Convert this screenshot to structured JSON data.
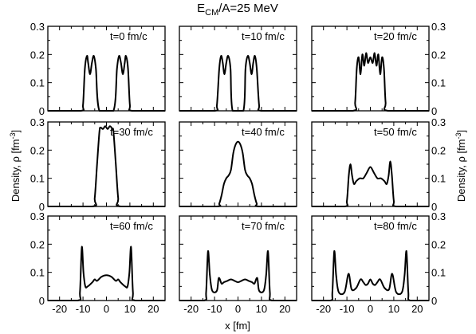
{
  "figure": {
    "title_main": "E",
    "title_sub": "CM",
    "title_rest": "/A=25 MeV",
    "xlabel": "x [fm]",
    "ylabel_left": "Density, ρ [fm",
    "ylabel_right": "Density, ρ [fm",
    "ylabel_exp": "-3",
    "ylabel_close": "]"
  },
  "chart_data": {
    "type": "line",
    "layout": "3x3 grid of small multiples, shared axes",
    "xlim": [
      -25,
      25
    ],
    "ylim": [
      0,
      0.3
    ],
    "x_ticks": [
      -20,
      -10,
      0,
      10,
      20
    ],
    "x_tick_labels": [
      "-20",
      "-10",
      "0",
      "10",
      "20"
    ],
    "y_ticks": [
      0,
      0.1,
      0.2,
      0.3
    ],
    "y_tick_labels": [
      "0",
      "0.1",
      "0.2",
      "0.3"
    ],
    "grid": false,
    "line_color": "#000000",
    "panels": [
      {
        "label": "t=0 fm/c",
        "x": [
          -25,
          -11,
          -10,
          -9.2,
          -8.3,
          -7.8,
          -7,
          -6.2,
          -5.4,
          -4.5,
          -3,
          3,
          4.5,
          5.4,
          6.2,
          7,
          7.8,
          8.3,
          9.2,
          10,
          11,
          25
        ],
        "y": [
          0,
          0,
          0.02,
          0.15,
          0.195,
          0.17,
          0.13,
          0.17,
          0.195,
          0.15,
          0,
          0,
          0.15,
          0.195,
          0.17,
          0.13,
          0.17,
          0.195,
          0.15,
          0.02,
          0,
          0
        ]
      },
      {
        "label": "t=10 fm/c",
        "x": [
          -25,
          -10,
          -9,
          -8,
          -7.2,
          -6.5,
          -5.8,
          -5,
          -4.2,
          -3.2,
          -2.3,
          2.3,
          3.2,
          4.2,
          5,
          5.8,
          6.5,
          7.2,
          8,
          9,
          10,
          25
        ],
        "y": [
          0,
          0,
          0.02,
          0.15,
          0.195,
          0.17,
          0.13,
          0.17,
          0.195,
          0.15,
          0,
          0,
          0.15,
          0.195,
          0.17,
          0.13,
          0.17,
          0.195,
          0.15,
          0.02,
          0,
          0
        ]
      },
      {
        "label": "t=20 fm/c",
        "x": [
          -25,
          -7.5,
          -6.5,
          -5.8,
          -5,
          -4.2,
          -3.4,
          -2.6,
          -1.8,
          -1,
          0,
          1,
          1.8,
          2.6,
          3.4,
          4.2,
          5,
          5.8,
          6.5,
          7.5,
          25
        ],
        "y": [
          0,
          0,
          0.03,
          0.15,
          0.19,
          0.13,
          0.2,
          0.16,
          0.205,
          0.17,
          0.19,
          0.17,
          0.205,
          0.16,
          0.2,
          0.13,
          0.19,
          0.15,
          0.03,
          0,
          0
        ]
      },
      {
        "label": "t=30 fm/c",
        "x": [
          -25,
          -6,
          -5,
          -4,
          -3,
          -2.5,
          -1.5,
          -0.5,
          0.5,
          1.5,
          2.5,
          3,
          4,
          5,
          6,
          25
        ],
        "y": [
          0,
          0,
          0.03,
          0.15,
          0.265,
          0.28,
          0.275,
          0.285,
          0.275,
          0.285,
          0.275,
          0.265,
          0.15,
          0.03,
          0,
          0
        ]
      },
      {
        "label": "t=40 fm/c",
        "x": [
          -25,
          -9,
          -8,
          -7,
          -6,
          -5,
          -4,
          -3,
          -2,
          -1,
          0,
          1,
          2,
          3,
          4,
          5,
          6,
          7,
          8,
          9,
          25
        ],
        "y": [
          0,
          0,
          0.01,
          0.04,
          0.08,
          0.1,
          0.11,
          0.13,
          0.19,
          0.22,
          0.23,
          0.22,
          0.19,
          0.13,
          0.11,
          0.1,
          0.08,
          0.04,
          0.01,
          0,
          0
        ]
      },
      {
        "label": "t=50 fm/c",
        "x": [
          -25,
          -11,
          -10,
          -9.2,
          -8.5,
          -7.8,
          -7,
          -6,
          -4.5,
          -3,
          -1.5,
          0,
          1.5,
          3,
          4.5,
          6,
          7,
          7.8,
          8.5,
          9.2,
          10,
          11,
          25
        ],
        "y": [
          0,
          0,
          0.02,
          0.11,
          0.15,
          0.11,
          0.08,
          0.09,
          0.1,
          0.1,
          0.12,
          0.14,
          0.12,
          0.1,
          0.1,
          0.09,
          0.08,
          0.11,
          0.16,
          0.11,
          0.02,
          0,
          0
        ]
      },
      {
        "label": "t=60 fm/c",
        "x": [
          -25,
          -12.2,
          -11.3,
          -10.5,
          -9.8,
          -9,
          -8,
          -6,
          -5,
          -4,
          -2,
          0,
          2,
          4,
          5,
          6,
          8,
          9,
          9.8,
          10.5,
          11.3,
          12.2,
          25
        ],
        "y": [
          0,
          0,
          0.03,
          0.19,
          0.1,
          0.05,
          0.05,
          0.065,
          0.075,
          0.07,
          0.085,
          0.09,
          0.085,
          0.07,
          0.075,
          0.065,
          0.05,
          0.05,
          0.1,
          0.19,
          0.03,
          0,
          0
        ]
      },
      {
        "label": "t=70 fm/c",
        "x": [
          -25,
          -14.5,
          -13.6,
          -12.8,
          -12,
          -11,
          -9,
          -8.2,
          -7,
          -6,
          -4.5,
          -3,
          -1.5,
          0,
          1.5,
          3,
          4.5,
          6,
          7,
          8.2,
          9,
          11,
          12,
          12.8,
          13.6,
          14.5,
          25
        ],
        "y": [
          0,
          0,
          0.03,
          0.175,
          0.09,
          0.035,
          0.035,
          0.08,
          0.06,
          0.065,
          0.07,
          0.075,
          0.07,
          0.065,
          0.07,
          0.075,
          0.07,
          0.065,
          0.06,
          0.08,
          0.035,
          0.035,
          0.09,
          0.175,
          0.03,
          0,
          0
        ]
      },
      {
        "label": "t=80 fm/c",
        "x": [
          -25,
          -17,
          -16.2,
          -15.4,
          -14.6,
          -13.5,
          -11,
          -9.3,
          -8,
          -6,
          -4.2,
          -3,
          -2,
          -1,
          0,
          1,
          2,
          3,
          4.2,
          6,
          8,
          9.3,
          11,
          13.5,
          14.6,
          15.4,
          16.2,
          17,
          25
        ],
        "y": [
          0,
          0,
          0.03,
          0.175,
          0.09,
          0.03,
          0.03,
          0.095,
          0.04,
          0.045,
          0.075,
          0.065,
          0.055,
          0.06,
          0.075,
          0.06,
          0.055,
          0.065,
          0.075,
          0.045,
          0.04,
          0.095,
          0.03,
          0.03,
          0.09,
          0.175,
          0.03,
          0,
          0
        ]
      }
    ]
  }
}
